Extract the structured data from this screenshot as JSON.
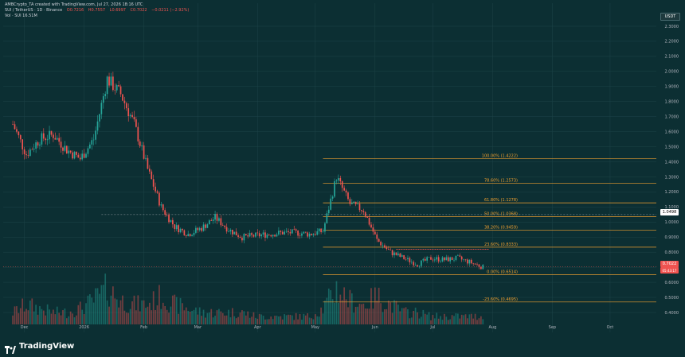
{
  "header": {
    "author_line": "AMBCrypto_TA created with TradingView.com, Jul 27, 2026 18:16 UTC",
    "symbol": "SUI / TetherUS · 1D · Binance",
    "ohlc": [
      "O0.7216",
      "H0.7557",
      "L0.6997",
      "C0.7022",
      "−0.0211 (−2.92%)"
    ],
    "volume": "Vol · SUI 16.51M"
  },
  "price_axis": {
    "currency": "USDT",
    "labels": [
      "2.3000",
      "2.2000",
      "2.1000",
      "2.0000",
      "1.9000",
      "1.8000",
      "1.7000",
      "1.6000",
      "1.5000",
      "1.4000",
      "1.3000",
      "1.2000",
      "1.1000",
      "1.0000",
      "0.9000",
      "0.8000",
      "0.7000",
      "0.6000",
      "0.5000",
      "0.4000"
    ]
  },
  "time_axis": {
    "labels": [
      "Dec",
      "2026",
      "Feb",
      "Mar",
      "Apr",
      "May",
      "Jun",
      "Jul",
      "Aug",
      "Sep",
      "Oct"
    ]
  },
  "badges": {
    "current_price": "0.7022",
    "countdown": "05:43:17",
    "level": "1.0498"
  },
  "fib_levels": [
    {
      "label": "100.00% (1.4222)",
      "price": 1.4222
    },
    {
      "label": "78.60% (1.2573)",
      "price": 1.2573
    },
    {
      "label": "61.80% (1.1278)",
      "price": 1.1278
    },
    {
      "label": "50.00% (1.0368)",
      "price": 1.0368
    },
    {
      "label": "38.20% (0.9459)",
      "price": 0.9459
    },
    {
      "label": "23.60% (0.8333)",
      "price": 0.8333
    },
    {
      "label": "0.00% (0.6514)",
      "price": 0.6514
    },
    {
      "label": "-23.60% (0.4695)",
      "price": 0.4695
    }
  ],
  "colors": {
    "up": "#26a69a",
    "down": "#ef5350",
    "fib": "#f0a030",
    "bg": "#0c2f33",
    "grid": "#1d4448",
    "text": "#d1d4dc",
    "level_line": "#ef5350"
  },
  "branding": {
    "name": "TradingView"
  },
  "chart_data": {
    "type": "candlestick",
    "ylim": [
      0.35,
      2.4
    ],
    "dates": [
      "2025-11-25",
      "2025-12-02",
      "2025-12-09",
      "2025-12-16",
      "2025-12-23",
      "2025-12-30",
      "2026-01-06",
      "2026-01-13",
      "2026-01-20",
      "2026-01-27",
      "2026-02-03",
      "2026-02-10",
      "2026-02-17",
      "2026-02-24",
      "2026-03-03",
      "2026-03-10",
      "2026-03-17",
      "2026-03-24",
      "2026-03-31",
      "2026-04-07",
      "2026-04-14",
      "2026-04-21",
      "2026-04-28",
      "2026-05-05",
      "2026-05-12",
      "2026-05-19",
      "2026-05-26",
      "2026-06-02",
      "2026-06-09",
      "2026-06-16",
      "2026-06-23",
      "2026-06-30",
      "2026-07-07",
      "2026-07-14",
      "2026-07-21",
      "2026-07-27"
    ],
    "close": [
      1.65,
      1.45,
      1.55,
      1.58,
      1.48,
      1.42,
      1.55,
      1.95,
      1.85,
      1.65,
      1.35,
      1.1,
      0.97,
      0.92,
      0.96,
      1.03,
      0.95,
      0.9,
      0.91,
      0.92,
      0.93,
      0.93,
      0.92,
      0.94,
      1.3,
      1.12,
      1.08,
      0.88,
      0.8,
      0.76,
      0.72,
      0.76,
      0.75,
      0.76,
      0.73,
      0.7
    ],
    "volume": [
      3,
      5,
      4,
      3,
      3,
      4,
      6,
      9,
      6,
      5,
      5,
      7,
      5,
      4,
      3,
      3,
      3,
      3,
      2,
      2,
      2,
      2,
      2,
      4,
      9,
      6,
      5,
      7,
      5,
      3,
      3,
      2,
      2,
      2,
      2,
      2
    ],
    "x_labels": [
      "Dec",
      "2026",
      "Feb",
      "Mar",
      "Apr",
      "May",
      "Jun",
      "Jul",
      "Aug",
      "Sep",
      "Oct"
    ]
  }
}
